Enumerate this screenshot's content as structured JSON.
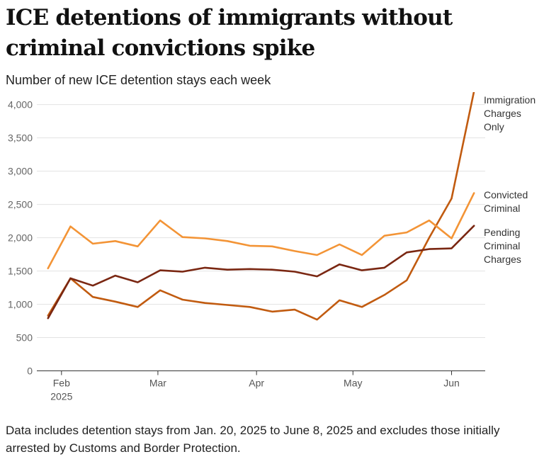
{
  "header": {
    "title": "ICE detentions of immigrants without criminal convictions spike",
    "subtitle": "Number of new ICE detention stays each week"
  },
  "footer": {
    "note": "Data includes detention stays from Jan. 20, 2025 to June 8, 2025 and excludes those initially arrested by Customs and Border Protection."
  },
  "chart_data": {
    "type": "line",
    "title": "ICE detentions of immigrants without criminal convictions spike",
    "subtitle": "Number of new ICE detention stays each week",
    "xlabel": "",
    "ylabel": "",
    "x": [
      0,
      1,
      2,
      3,
      4,
      5,
      6,
      7,
      8,
      9,
      10,
      11,
      12,
      13,
      14,
      15,
      16,
      17,
      18,
      19
    ],
    "x_domain": [
      -0.5,
      19.5
    ],
    "ylim": [
      0,
      4300
    ],
    "y_ticks": [
      0,
      500,
      1000,
      1500,
      2000,
      2500,
      3000,
      3500,
      4000
    ],
    "y_tick_labels": [
      "0",
      "500",
      "1,000",
      "1,500",
      "2,000",
      "2,500",
      "3,000",
      "3,500",
      "4,000"
    ],
    "x_ticks": [
      {
        "pos": 0.6,
        "label": "Feb",
        "sublabel": "2025"
      },
      {
        "pos": 4.9,
        "label": "Mar",
        "sublabel": ""
      },
      {
        "pos": 9.3,
        "label": "Apr",
        "sublabel": ""
      },
      {
        "pos": 13.6,
        "label": "May",
        "sublabel": ""
      },
      {
        "pos": 18.0,
        "label": "Jun",
        "sublabel": ""
      }
    ],
    "grid": true,
    "series": [
      {
        "name": "Immigration Charges Only",
        "label_lines": [
          "Immigration",
          "Charges",
          "Only"
        ],
        "color": "#c15b10",
        "values": [
          830,
          1390,
          1110,
          1040,
          960,
          1210,
          1070,
          1020,
          990,
          960,
          890,
          920,
          770,
          1060,
          960,
          1140,
          1360,
          2000,
          2590,
          4200
        ]
      },
      {
        "name": "Convicted Criminal",
        "label_lines": [
          "Convicted",
          "Criminal"
        ],
        "color": "#f39436",
        "values": [
          1540,
          2170,
          1910,
          1950,
          1870,
          2260,
          2010,
          1990,
          1950,
          1880,
          1870,
          1800,
          1740,
          1900,
          1740,
          2030,
          2080,
          2260,
          1990,
          2670
        ]
      },
      {
        "name": "Pending Criminal Charges",
        "label_lines": [
          "Pending",
          "Criminal",
          "Charges"
        ],
        "color": "#7a2712",
        "values": [
          790,
          1390,
          1280,
          1430,
          1330,
          1510,
          1490,
          1550,
          1520,
          1530,
          1520,
          1490,
          1420,
          1600,
          1510,
          1550,
          1780,
          1830,
          1840,
          2180
        ]
      }
    ]
  }
}
